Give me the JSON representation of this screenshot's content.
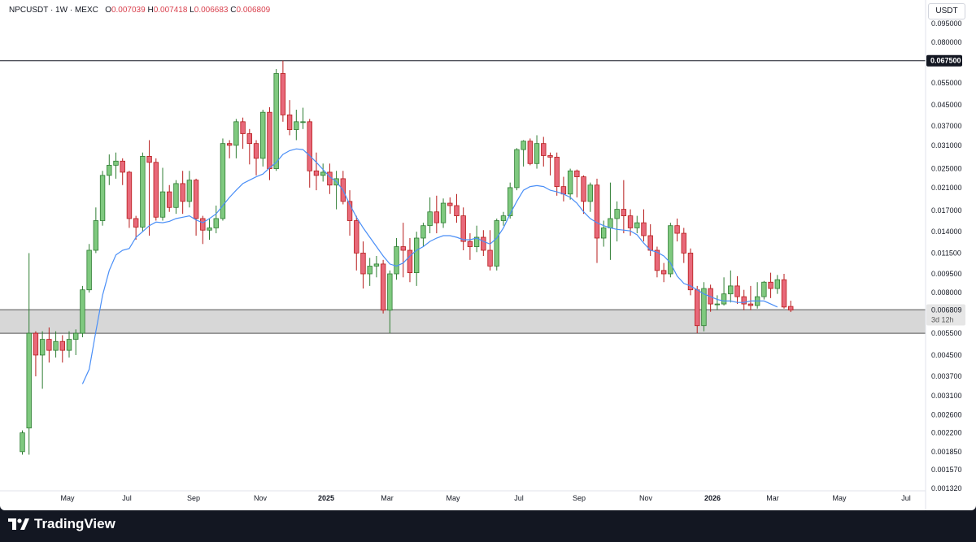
{
  "header": {
    "symbol": "NPCUSDT",
    "interval": "1W",
    "exchange": "MEXC",
    "open_label": "O",
    "open": "0.007039",
    "high_label": "H",
    "high": "0.007418",
    "low_label": "L",
    "low": "0.006683",
    "close_label": "C",
    "close": "0.006809",
    "currency": "USDT"
  },
  "colors": {
    "up": "#7fc97f",
    "down": "#e8697a",
    "up_border": "#2e7d32",
    "down_border": "#b71c1c",
    "ma": "#4a8ff7",
    "zone": "#d3d3d3",
    "background": "#ffffff"
  },
  "chart_data": {
    "type": "candlestick",
    "scale": "log",
    "y_ticks": [
      "0.095000",
      "0.080000",
      "0.065500",
      "0.055000",
      "0.045000",
      "0.037000",
      "0.031000",
      "0.025000",
      "0.021000",
      "0.017000",
      "0.014000",
      "0.011500",
      "0.009500",
      "0.008000",
      "0.005500",
      "0.004500",
      "0.003700",
      "0.003100",
      "0.002600",
      "0.002200",
      "0.001850",
      "0.001570",
      "0.001320"
    ],
    "x_ticks": [
      {
        "label": "May",
        "bold": false
      },
      {
        "label": "Jul",
        "bold": false
      },
      {
        "label": "Sep",
        "bold": false
      },
      {
        "label": "Nov",
        "bold": false
      },
      {
        "label": "2025",
        "bold": true
      },
      {
        "label": "Mar",
        "bold": false
      },
      {
        "label": "May",
        "bold": false
      },
      {
        "label": "Jul",
        "bold": false
      },
      {
        "label": "Sep",
        "bold": false
      },
      {
        "label": "Nov",
        "bold": false
      },
      {
        "label": "2026",
        "bold": true
      },
      {
        "label": "Mar",
        "bold": false
      },
      {
        "label": "May",
        "bold": false
      },
      {
        "label": "Jul",
        "bold": false
      }
    ],
    "resistance_line": {
      "value": 0.0675,
      "label": "0.067500"
    },
    "support_zone": {
      "low": 0.0055,
      "high": 0.00683
    },
    "last_price": {
      "value": 0.006809,
      "label": "0.006809",
      "countdown": "3d 12h"
    },
    "candles": [
      [
        0.00185,
        0.0022,
        0.0018,
        0.00225
      ],
      [
        0.0023,
        0.0055,
        0.0018,
        0.0115
      ],
      [
        0.0055,
        0.0045,
        0.0037,
        0.0056
      ],
      [
        0.0045,
        0.0052,
        0.0033,
        0.0056
      ],
      [
        0.0052,
        0.0047,
        0.0042,
        0.0058
      ],
      [
        0.0047,
        0.0051,
        0.0044,
        0.0056
      ],
      [
        0.0051,
        0.0047,
        0.0042,
        0.0054
      ],
      [
        0.0047,
        0.0052,
        0.0044,
        0.0056
      ],
      [
        0.0052,
        0.0055,
        0.0045,
        0.0057
      ],
      [
        0.0055,
        0.0082,
        0.0053,
        0.0085
      ],
      [
        0.0082,
        0.0118,
        0.008,
        0.0125
      ],
      [
        0.0118,
        0.0155,
        0.0115,
        0.0175
      ],
      [
        0.0155,
        0.0235,
        0.0148,
        0.0245
      ],
      [
        0.0235,
        0.0258,
        0.0215,
        0.0285
      ],
      [
        0.0258,
        0.0268,
        0.0228,
        0.029
      ],
      [
        0.0268,
        0.0242,
        0.0215,
        0.0275
      ],
      [
        0.0242,
        0.0158,
        0.0145,
        0.0245
      ],
      [
        0.0158,
        0.0146,
        0.013,
        0.0162
      ],
      [
        0.0146,
        0.028,
        0.014,
        0.029
      ],
      [
        0.028,
        0.0265,
        0.0135,
        0.0325
      ],
      [
        0.0265,
        0.016,
        0.0155,
        0.0275
      ],
      [
        0.016,
        0.0202,
        0.0155,
        0.0252
      ],
      [
        0.0202,
        0.0175,
        0.0168,
        0.0215
      ],
      [
        0.0175,
        0.0218,
        0.0165,
        0.0225
      ],
      [
        0.0218,
        0.0185,
        0.0165,
        0.0245
      ],
      [
        0.0185,
        0.0225,
        0.0175,
        0.0245
      ],
      [
        0.0225,
        0.0158,
        0.0135,
        0.0228
      ],
      [
        0.0158,
        0.0142,
        0.0125,
        0.0162
      ],
      [
        0.0142,
        0.0145,
        0.013,
        0.0158
      ],
      [
        0.0145,
        0.0158,
        0.0138,
        0.0178
      ],
      [
        0.0158,
        0.0315,
        0.0155,
        0.033
      ],
      [
        0.0315,
        0.031,
        0.0275,
        0.0325
      ],
      [
        0.031,
        0.0385,
        0.0275,
        0.0395
      ],
      [
        0.0385,
        0.0345,
        0.03,
        0.04
      ],
      [
        0.0345,
        0.0315,
        0.026,
        0.036
      ],
      [
        0.0315,
        0.0275,
        0.0235,
        0.0325
      ],
      [
        0.0275,
        0.042,
        0.0255,
        0.043
      ],
      [
        0.042,
        0.025,
        0.0225,
        0.044
      ],
      [
        0.025,
        0.06,
        0.0245,
        0.0625
      ],
      [
        0.06,
        0.041,
        0.0385,
        0.0675
      ],
      [
        0.041,
        0.0358,
        0.034,
        0.047
      ],
      [
        0.0358,
        0.0385,
        0.0325,
        0.043
      ],
      [
        0.0385,
        0.0385,
        0.036,
        0.0438
      ],
      [
        0.0385,
        0.0245,
        0.021,
        0.0395
      ],
      [
        0.0245,
        0.0235,
        0.0205,
        0.029
      ],
      [
        0.0235,
        0.0242,
        0.0222,
        0.0262
      ],
      [
        0.0242,
        0.0215,
        0.0198,
        0.0262
      ],
      [
        0.0215,
        0.0228,
        0.0172,
        0.0245
      ],
      [
        0.0228,
        0.0185,
        0.018,
        0.0245
      ],
      [
        0.0185,
        0.0155,
        0.0135,
        0.0205
      ],
      [
        0.0155,
        0.0115,
        0.0098,
        0.0162
      ],
      [
        0.0115,
        0.0095,
        0.0083,
        0.0128
      ],
      [
        0.0095,
        0.0102,
        0.0085,
        0.011
      ],
      [
        0.0102,
        0.0104,
        0.0092,
        0.0112
      ],
      [
        0.0104,
        0.0068,
        0.0066,
        0.0108
      ],
      [
        0.0068,
        0.0095,
        0.0055,
        0.0098
      ],
      [
        0.0095,
        0.0122,
        0.009,
        0.0132
      ],
      [
        0.0122,
        0.0118,
        0.0092,
        0.0152
      ],
      [
        0.0118,
        0.0096,
        0.0088,
        0.0132
      ],
      [
        0.0096,
        0.0132,
        0.0085,
        0.014
      ],
      [
        0.0132,
        0.0148,
        0.0122,
        0.0152
      ],
      [
        0.0148,
        0.0168,
        0.0138,
        0.0192
      ],
      [
        0.0168,
        0.0152,
        0.0138,
        0.0195
      ],
      [
        0.0152,
        0.0182,
        0.0145,
        0.019
      ],
      [
        0.0182,
        0.0178,
        0.0165,
        0.0192
      ],
      [
        0.0178,
        0.0162,
        0.0152,
        0.0198
      ],
      [
        0.0162,
        0.0128,
        0.0118,
        0.0175
      ],
      [
        0.0128,
        0.0122,
        0.0108,
        0.0138
      ],
      [
        0.0122,
        0.0133,
        0.0116,
        0.0148
      ],
      [
        0.0133,
        0.0118,
        0.0112,
        0.0142
      ],
      [
        0.0118,
        0.0102,
        0.0098,
        0.0142
      ],
      [
        0.0102,
        0.0155,
        0.0098,
        0.0158
      ],
      [
        0.0155,
        0.0162,
        0.0148,
        0.0168
      ],
      [
        0.0162,
        0.021,
        0.0158,
        0.022
      ],
      [
        0.021,
        0.0298,
        0.0205,
        0.0302
      ],
      [
        0.0298,
        0.0322,
        0.0255,
        0.0325
      ],
      [
        0.0322,
        0.0262,
        0.0258,
        0.033
      ],
      [
        0.0262,
        0.0315,
        0.025,
        0.034
      ],
      [
        0.0315,
        0.0282,
        0.0255,
        0.0335
      ],
      [
        0.0282,
        0.0278,
        0.0235,
        0.029
      ],
      [
        0.0278,
        0.0212,
        0.0195,
        0.029
      ],
      [
        0.0212,
        0.0198,
        0.0185,
        0.0232
      ],
      [
        0.0198,
        0.0245,
        0.0188,
        0.025
      ],
      [
        0.0245,
        0.0232,
        0.0192,
        0.0248
      ],
      [
        0.0232,
        0.0185,
        0.0165,
        0.0235
      ],
      [
        0.0185,
        0.0215,
        0.0168,
        0.022
      ],
      [
        0.0215,
        0.0132,
        0.0105,
        0.0228
      ],
      [
        0.0132,
        0.0145,
        0.0122,
        0.0155
      ],
      [
        0.0145,
        0.0158,
        0.0108,
        0.022
      ],
      [
        0.0158,
        0.0172,
        0.0128,
        0.0185
      ],
      [
        0.0172,
        0.0162,
        0.0138,
        0.0225
      ],
      [
        0.0162,
        0.0145,
        0.0135,
        0.0172
      ],
      [
        0.0145,
        0.0152,
        0.0138,
        0.0162
      ],
      [
        0.0152,
        0.0135,
        0.0128,
        0.0172
      ],
      [
        0.0135,
        0.0118,
        0.0112,
        0.015
      ],
      [
        0.0118,
        0.0098,
        0.0092,
        0.0122
      ],
      [
        0.0098,
        0.0095,
        0.0088,
        0.0105
      ],
      [
        0.0095,
        0.0148,
        0.0092,
        0.0152
      ],
      [
        0.0148,
        0.0138,
        0.0128,
        0.0158
      ],
      [
        0.0138,
        0.0115,
        0.0105,
        0.0145
      ],
      [
        0.0115,
        0.0082,
        0.0078,
        0.012
      ],
      [
        0.0082,
        0.0059,
        0.0055,
        0.0085
      ],
      [
        0.0059,
        0.0083,
        0.0056,
        0.0088
      ],
      [
        0.0083,
        0.0072,
        0.0067,
        0.0086
      ],
      [
        0.0072,
        0.0072,
        0.0068,
        0.0078
      ],
      [
        0.0072,
        0.0079,
        0.0071,
        0.0092
      ],
      [
        0.0079,
        0.0085,
        0.0073,
        0.0098
      ],
      [
        0.0085,
        0.0077,
        0.0072,
        0.0093
      ],
      [
        0.0077,
        0.0072,
        0.0068,
        0.0082
      ],
      [
        0.0072,
        0.0071,
        0.0068,
        0.0085
      ],
      [
        0.0071,
        0.0077,
        0.0069,
        0.0088
      ],
      [
        0.0077,
        0.0088,
        0.0075,
        0.0089
      ],
      [
        0.0088,
        0.0083,
        0.0076,
        0.0096
      ],
      [
        0.0083,
        0.009,
        0.0079,
        0.0094
      ],
      [
        0.009,
        0.007,
        0.0069,
        0.0095
      ],
      [
        0.007039,
        0.006809,
        0.006683,
        0.007418
      ]
    ],
    "ma": [
      [
        9,
        0.00345
      ],
      [
        10,
        0.00395
      ],
      [
        11,
        0.0056
      ],
      [
        12,
        0.0078
      ],
      [
        13,
        0.0098
      ],
      [
        14,
        0.0113
      ],
      [
        15,
        0.0118
      ],
      [
        16,
        0.012
      ],
      [
        17,
        0.0133
      ],
      [
        18,
        0.014
      ],
      [
        19,
        0.0148
      ],
      [
        20,
        0.0153
      ],
      [
        21,
        0.0152
      ],
      [
        22,
        0.0154
      ],
      [
        23,
        0.0158
      ],
      [
        24,
        0.016
      ],
      [
        25,
        0.0162
      ],
      [
        26,
        0.0156
      ],
      [
        27,
        0.0152
      ],
      [
        28,
        0.0158
      ],
      [
        29,
        0.0165
      ],
      [
        30,
        0.0178
      ],
      [
        31,
        0.0192
      ],
      [
        32,
        0.0205
      ],
      [
        33,
        0.0218
      ],
      [
        34,
        0.0225
      ],
      [
        35,
        0.0232
      ],
      [
        36,
        0.0238
      ],
      [
        37,
        0.0252
      ],
      [
        38,
        0.0265
      ],
      [
        39,
        0.0285
      ],
      [
        40,
        0.0295
      ],
      [
        41,
        0.03
      ],
      [
        42,
        0.0298
      ],
      [
        43,
        0.0282
      ],
      [
        44,
        0.0265
      ],
      [
        45,
        0.0248
      ],
      [
        46,
        0.0232
      ],
      [
        47,
        0.0222
      ],
      [
        48,
        0.0205
      ],
      [
        49,
        0.018
      ],
      [
        50,
        0.016
      ],
      [
        51,
        0.0145
      ],
      [
        52,
        0.0133
      ],
      [
        53,
        0.0122
      ],
      [
        54,
        0.0112
      ],
      [
        55,
        0.0104
      ],
      [
        56,
        0.0102
      ],
      [
        57,
        0.0105
      ],
      [
        58,
        0.0112
      ],
      [
        59,
        0.0118
      ],
      [
        60,
        0.0122
      ],
      [
        61,
        0.0128
      ],
      [
        62,
        0.0132
      ],
      [
        63,
        0.0135
      ],
      [
        64,
        0.0135
      ],
      [
        65,
        0.0133
      ],
      [
        66,
        0.013
      ],
      [
        67,
        0.013
      ],
      [
        68,
        0.0132
      ],
      [
        69,
        0.0128
      ],
      [
        70,
        0.0125
      ],
      [
        71,
        0.0132
      ],
      [
        72,
        0.0145
      ],
      [
        73,
        0.0165
      ],
      [
        74,
        0.0185
      ],
      [
        75,
        0.0205
      ],
      [
        76,
        0.0212
      ],
      [
        77,
        0.0214
      ],
      [
        78,
        0.0212
      ],
      [
        79,
        0.0205
      ],
      [
        80,
        0.0202
      ],
      [
        81,
        0.0198
      ],
      [
        82,
        0.0192
      ],
      [
        83,
        0.0182
      ],
      [
        84,
        0.0168
      ],
      [
        85,
        0.0158
      ],
      [
        86,
        0.0152
      ],
      [
        87,
        0.0148
      ],
      [
        88,
        0.0145
      ],
      [
        89,
        0.0143
      ],
      [
        90,
        0.0142
      ],
      [
        91,
        0.0141
      ],
      [
        92,
        0.0136
      ],
      [
        93,
        0.0126
      ],
      [
        94,
        0.0118
      ],
      [
        95,
        0.0116
      ],
      [
        96,
        0.0112
      ],
      [
        97,
        0.0105
      ],
      [
        98,
        0.0093
      ],
      [
        99,
        0.0087
      ],
      [
        100,
        0.0085
      ],
      [
        101,
        0.0082
      ],
      [
        102,
        0.0079
      ],
      [
        103,
        0.0077
      ],
      [
        104,
        0.0075
      ],
      [
        105,
        0.0074
      ],
      [
        106,
        0.0074
      ],
      [
        107,
        0.0073
      ],
      [
        108,
        0.0073
      ],
      [
        109,
        0.0074
      ],
      [
        110,
        0.0074
      ],
      [
        111,
        0.0074
      ],
      [
        112,
        0.0072
      ],
      [
        113,
        0.007
      ]
    ]
  },
  "branding": {
    "logo_text": "TradingView"
  }
}
